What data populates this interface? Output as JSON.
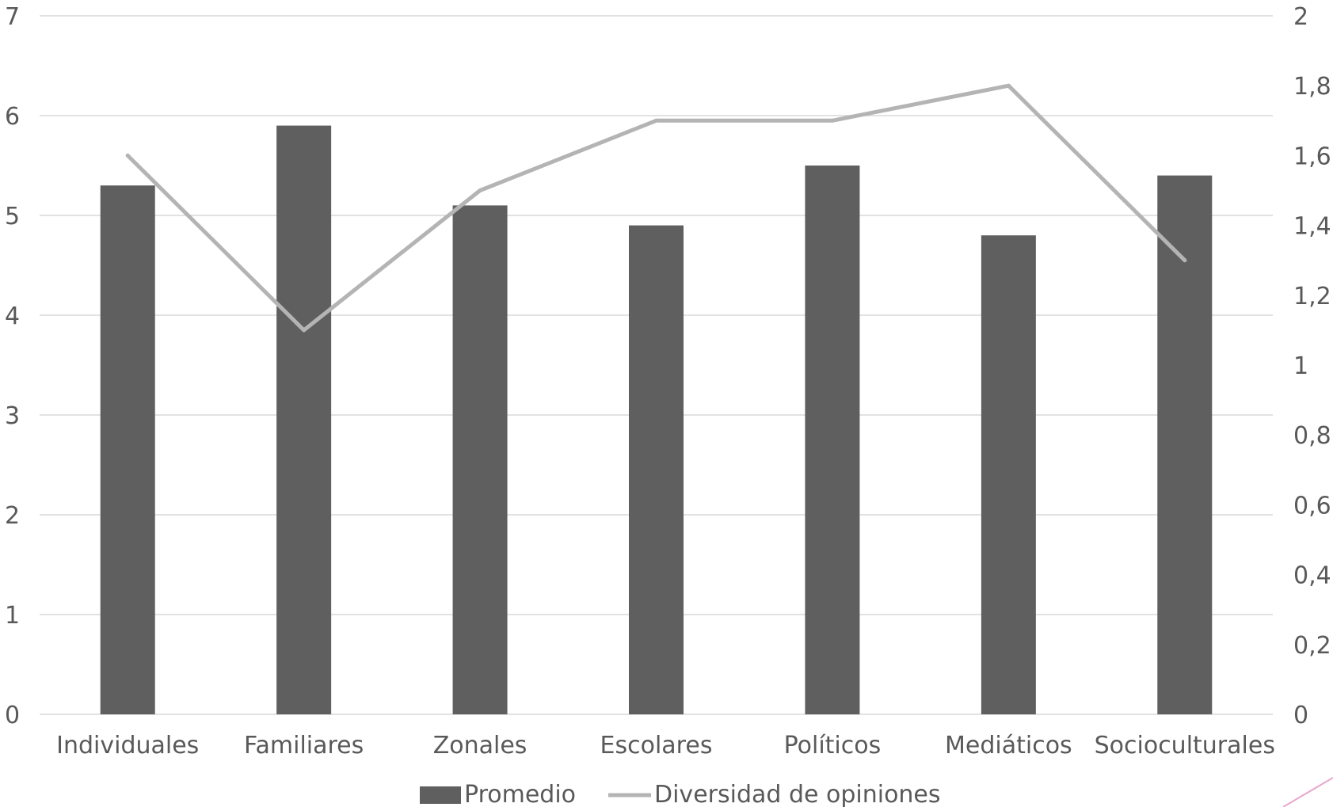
{
  "chart_data": {
    "type": "bar",
    "categories": [
      "Individuales",
      "Familiares",
      "Zonales",
      "Escolares",
      "Políticos",
      "Mediáticos",
      "Socioculturales"
    ],
    "series": [
      {
        "name": "Promedio",
        "type": "bar",
        "axis": "left",
        "color": "#5f5f5f",
        "values": [
          5.3,
          5.9,
          5.1,
          4.9,
          5.5,
          4.8,
          5.4
        ]
      },
      {
        "name": "Diversidad de opiniones",
        "type": "line",
        "axis": "right",
        "color": "#b4b4b4",
        "values": [
          1.6,
          1.1,
          1.5,
          1.7,
          1.7,
          1.8,
          1.3
        ]
      }
    ],
    "y_left": {
      "min": 0,
      "max": 7,
      "ticks": [
        "0",
        "1",
        "2",
        "3",
        "4",
        "5",
        "6",
        "7"
      ]
    },
    "y_right": {
      "min": 0,
      "max": 2,
      "ticks": [
        "0",
        "0,2",
        "0,4",
        "0,6",
        "0,8",
        "1",
        "1,2",
        "1,4",
        "1,6",
        "1,8",
        "2"
      ]
    },
    "grid": true,
    "legend_position": "bottom",
    "title": "",
    "xlabel": "",
    "ylabel": ""
  }
}
